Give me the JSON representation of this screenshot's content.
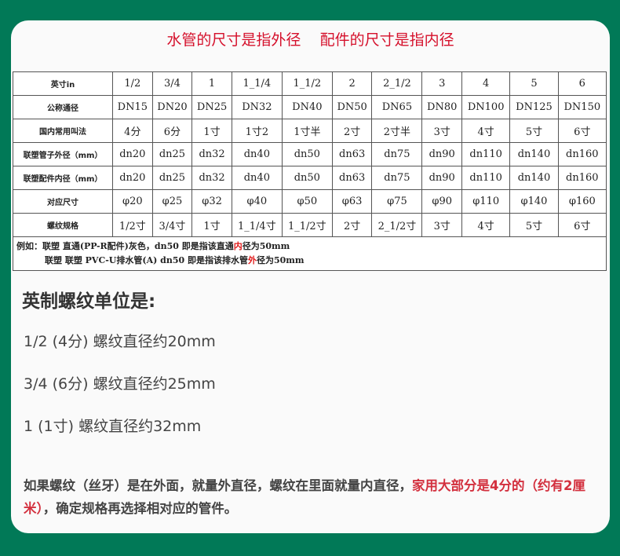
{
  "title": "水管的尺寸是指外径    配件的尺寸是指内径",
  "table": {
    "rows": [
      {
        "label": "英寸in",
        "cells": [
          "1/2",
          "3/4",
          "1",
          "1_1/4",
          "1_1/2",
          "2",
          "2_1/2",
          "3",
          "4",
          "5",
          "6"
        ]
      },
      {
        "label": "公称通径",
        "cells": [
          "DN15",
          "DN20",
          "DN25",
          "DN32",
          "DN40",
          "DN50",
          "DN65",
          "DN80",
          "DN100",
          "DN125",
          "DN150"
        ]
      },
      {
        "label": "国内常用叫法",
        "cells": [
          "4分",
          "6分",
          "1寸",
          "1寸2",
          "1寸半",
          "2寸",
          "2寸半",
          "3寸",
          "4寸",
          "5寸",
          "6寸"
        ]
      },
      {
        "label": "联塑管子外径（mm）",
        "cells": [
          "dn20",
          "dn25",
          "dn32",
          "dn40",
          "dn50",
          "dn63",
          "dn75",
          "dn90",
          "dn110",
          "dn140",
          "dn160"
        ]
      },
      {
        "label": "联塑配件内径（mm）",
        "cells": [
          "dn20",
          "dn25",
          "dn32",
          "dn40",
          "dn50",
          "dn63",
          "dn75",
          "dn90",
          "dn110",
          "dn140",
          "dn160"
        ]
      },
      {
        "label": "对应尺寸",
        "cells": [
          "φ20",
          "φ25",
          "φ32",
          "φ40",
          "φ50",
          "φ63",
          "φ75",
          "φ90",
          "φ110",
          "φ140",
          "φ160"
        ]
      },
      {
        "label": "螺纹规格",
        "cells": [
          "1/2寸",
          "3/4寸",
          "1寸",
          "1_1/4寸",
          "1_1/2寸",
          "2寸",
          "2_1/2寸",
          "3寸",
          "4寸",
          "5寸",
          "6寸"
        ]
      }
    ],
    "note1": {
      "a": "例如：联塑 直通(PP-R配件)灰色，dn50  即是指该直通",
      "b": "内",
      "c": "径为50mm"
    },
    "note2": {
      "a": "联塑 联塑 PVC-U排水管(A) dn50  即是指该排水管",
      "b": "外",
      "c": "径为50mm"
    }
  },
  "heading": "英制螺纹单位是:",
  "lines": [
    "1/2 (4分) 螺纹直径约20mm",
    "3/4 (6分) 螺纹直径约25mm",
    "1 (1寸) 螺纹直径约32mm"
  ],
  "bottom": {
    "a": "如果螺纹（丝牙）是在外面，就量外直径，螺纹在里面就量内直径，",
    "b": "家用大部分是4分的（约有2厘米）",
    "c": "，确定规格再选择相对应的管件。"
  },
  "colors": {
    "background": "#017957",
    "accent": "#d5102b"
  }
}
